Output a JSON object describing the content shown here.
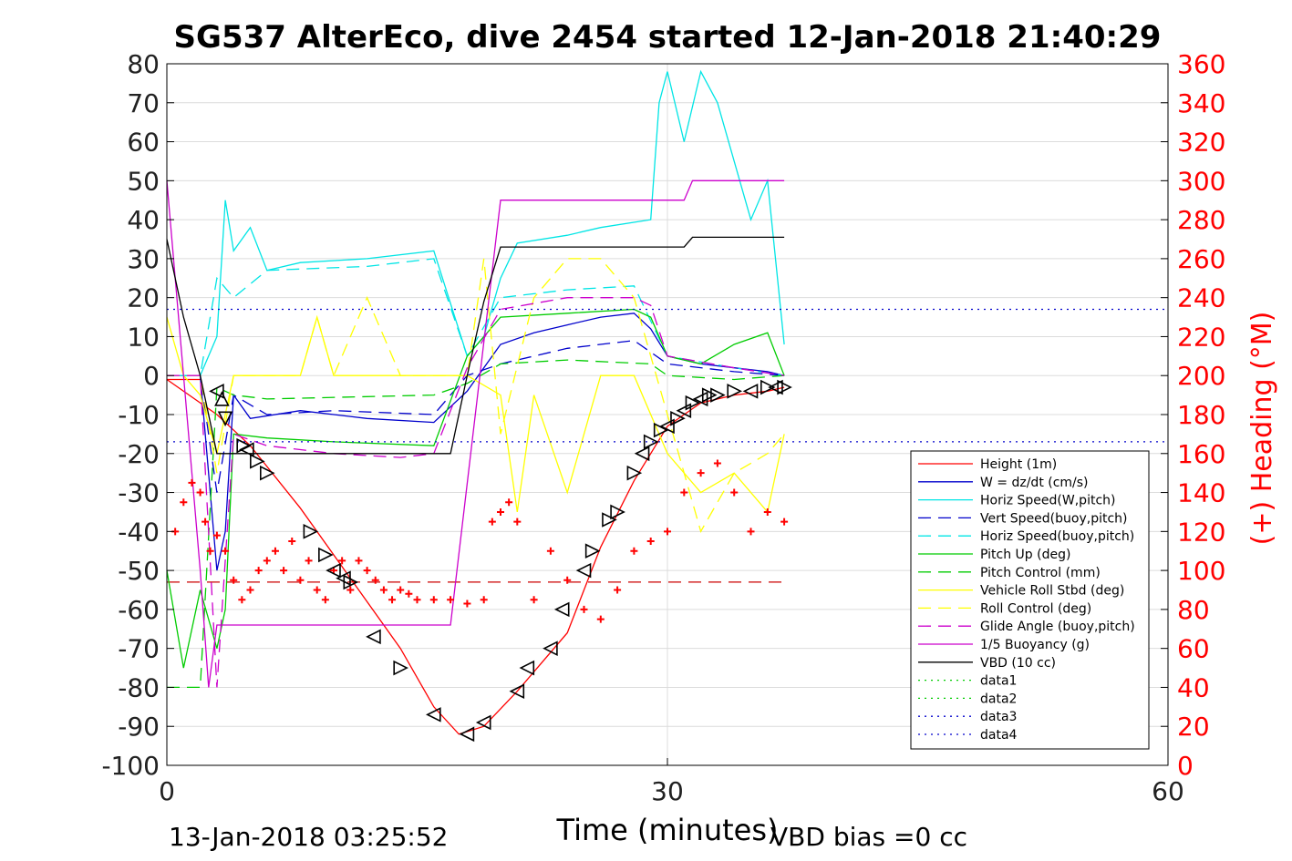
{
  "chart_data": {
    "type": "line",
    "title": "SG537 AlterEco, dive 2454 started 12-Jan-2018 21:40:29",
    "xlabel": "Time (minutes)",
    "ylabel": "",
    "y2label": "(+) Heading (°M)",
    "footer_left": "13-Jan-2018 03:25:52",
    "footer_right": "VBD bias =0 cc",
    "xlim": [
      0,
      60
    ],
    "ylim": [
      -100,
      80
    ],
    "y2lim": [
      0,
      360
    ],
    "xticks": [
      0,
      30,
      60
    ],
    "yticks": [
      -100,
      -90,
      -80,
      -70,
      -60,
      -50,
      -40,
      -30,
      -20,
      -10,
      0,
      10,
      20,
      30,
      40,
      50,
      60,
      70,
      80
    ],
    "y2ticks": [
      0,
      20,
      40,
      60,
      80,
      100,
      120,
      140,
      160,
      180,
      200,
      220,
      240,
      260,
      280,
      300,
      320,
      340,
      360
    ],
    "grid": true,
    "legend_position": "bottom-right",
    "colors": {
      "axis_right": "#ff0000",
      "red": "#ff0000",
      "blue": "#0000cc",
      "cyan": "#00e5e5",
      "green": "#00cc00",
      "yellow": "#ffff00",
      "magenta": "#cc00cc",
      "black": "#000000"
    },
    "series": [
      {
        "name": "Height (1m)",
        "color": "#ff0000",
        "style": "solid",
        "x": [
          0,
          3,
          5,
          8,
          11,
          14,
          16,
          17.5,
          19,
          21,
          24,
          26,
          28,
          30,
          32,
          34,
          36,
          37
        ],
        "y": [
          -1,
          -10,
          -18,
          -34,
          -52,
          -70,
          -85,
          -92,
          -90,
          -81,
          -66,
          -44,
          -27,
          -13,
          -7,
          -5,
          -4,
          -3
        ]
      },
      {
        "name": "W = dz/dt (cm/s)",
        "color": "#0000cc",
        "style": "solid",
        "x": [
          0,
          2,
          3,
          3.5,
          4,
          5,
          8,
          12,
          16,
          18,
          20,
          22,
          24,
          26,
          28,
          29,
          30,
          32,
          34,
          36,
          37
        ],
        "y": [
          0,
          0,
          -50,
          -40,
          -5,
          -11,
          -9,
          -11,
          -12,
          -4,
          8,
          11,
          13,
          15,
          16,
          12,
          5,
          3,
          2,
          1,
          0
        ]
      },
      {
        "name": "Horiz Speed(W,pitch)",
        "color": "#00e5e5",
        "style": "solid",
        "x": [
          0,
          2,
          3,
          3.5,
          4,
          5,
          6,
          8,
          12,
          16,
          18,
          19,
          20,
          21,
          24,
          26,
          29,
          29.5,
          30,
          31,
          32,
          33,
          34,
          35,
          36,
          37
        ],
        "y": [
          0,
          0,
          10,
          45,
          32,
          38,
          27,
          29,
          30,
          32,
          5,
          10,
          25,
          34,
          36,
          38,
          40,
          70,
          78,
          60,
          78,
          70,
          55,
          40,
          50,
          8
        ]
      },
      {
        "name": "Vert Speed(buoy,pitch)",
        "color": "#0000cc",
        "style": "dashed",
        "x": [
          0,
          2,
          3,
          4,
          6,
          10,
          16,
          18,
          20,
          24,
          28,
          30,
          34,
          37
        ],
        "y": [
          0,
          0,
          -30,
          -5,
          -10,
          -9,
          -10,
          0,
          3,
          7,
          9,
          3,
          1,
          0
        ]
      },
      {
        "name": "Horiz Speed(buoy,pitch)",
        "color": "#00e5e5",
        "style": "dashed",
        "x": [
          0,
          2,
          3,
          4,
          6,
          12,
          16,
          18,
          20,
          24,
          28,
          30,
          34,
          37
        ],
        "y": [
          0,
          0,
          25,
          20,
          27,
          28,
          30,
          5,
          20,
          22,
          23,
          5,
          2,
          0
        ]
      },
      {
        "name": "Pitch Up (deg)",
        "color": "#00cc00",
        "style": "solid",
        "x": [
          0,
          1,
          2,
          3,
          3.5,
          4,
          6,
          10,
          16,
          18,
          19,
          20,
          24,
          28,
          29,
          30,
          32,
          34,
          36,
          37
        ],
        "y": [
          -50,
          -75,
          -55,
          -70,
          -60,
          -15,
          -16,
          -17,
          -18,
          5,
          10,
          15,
          16,
          17,
          15,
          5,
          3,
          8,
          11,
          0
        ]
      },
      {
        "name": "Pitch Control (mm)",
        "color": "#00cc00",
        "style": "dashed",
        "x": [
          0,
          1,
          2,
          3,
          4,
          6,
          16,
          18,
          20,
          24,
          29,
          30,
          34,
          37
        ],
        "y": [
          -80,
          -80,
          -80,
          -3,
          -5,
          -6,
          -5,
          -2,
          3,
          4,
          3,
          0,
          -1,
          0
        ]
      },
      {
        "name": "Vehicle Roll Stbd (deg)",
        "color": "#ffff00",
        "style": "solid",
        "x": [
          0,
          1,
          2,
          3,
          4,
          6,
          8,
          9,
          10,
          14,
          16,
          18,
          20,
          21,
          22,
          24,
          26,
          28,
          30,
          32,
          34,
          36,
          37
        ],
        "y": [
          15,
          0,
          -5,
          -20,
          0,
          0,
          0,
          15,
          0,
          0,
          0,
          0,
          -5,
          -35,
          -5,
          -30,
          0,
          0,
          -20,
          -30,
          -25,
          -35,
          -15
        ]
      },
      {
        "name": "Roll Control (deg)",
        "color": "#ffff00",
        "style": "dashed",
        "x": [
          0,
          2,
          3,
          4,
          6,
          8,
          9,
          10,
          12,
          14,
          16,
          18,
          19,
          20,
          22,
          24,
          26,
          28,
          30,
          32,
          34,
          36,
          37
        ],
        "y": [
          0,
          0,
          -25,
          0,
          0,
          0,
          15,
          0,
          20,
          0,
          0,
          0,
          30,
          -15,
          20,
          30,
          30,
          20,
          -10,
          -40,
          -25,
          -20,
          -15
        ]
      },
      {
        "name": "Glide Angle (buoy,pitch)",
        "color": "#cc00cc",
        "style": "dashed",
        "x": [
          0,
          2,
          3,
          4,
          6,
          10,
          14,
          16,
          18,
          20,
          24,
          28,
          29,
          30,
          34,
          37
        ],
        "y": [
          0,
          0,
          -80,
          -15,
          -18,
          -20,
          -21,
          -20,
          2,
          17,
          20,
          20,
          18,
          5,
          2,
          0
        ]
      },
      {
        "name": "1/5 Buoyancy (g)",
        "color": "#cc00cc",
        "style": "solid",
        "x": [
          0,
          1,
          2,
          2.5,
          3,
          16,
          17,
          20,
          21,
          31,
          31.5,
          37
        ],
        "y": [
          50,
          0,
          -50,
          -80,
          -64,
          -64,
          -64,
          45,
          45,
          45,
          50,
          50
        ]
      },
      {
        "name": "VBD (10 cc)",
        "color": "#000000",
        "style": "solid",
        "x": [
          0,
          1,
          2,
          3,
          16,
          17,
          18,
          19,
          20,
          31,
          31.5,
          37
        ],
        "y": [
          35,
          15,
          0,
          -20,
          -20,
          -20,
          0,
          19,
          33,
          33,
          35.5,
          35.5
        ]
      },
      {
        "name": "data1",
        "color": "#00cc00",
        "style": "dotted",
        "x": [],
        "y": []
      },
      {
        "name": "data2",
        "color": "#00cc00",
        "style": "dotted",
        "x": [],
        "y": []
      },
      {
        "name": "data3",
        "color": "#0000cc",
        "style": "dotted",
        "x": [
          0,
          60
        ],
        "y": [
          -17,
          -17
        ]
      },
      {
        "name": "data4",
        "color": "#0000cc",
        "style": "dotted",
        "x": [
          0,
          60
        ],
        "y": [
          17,
          17
        ]
      }
    ],
    "reference_lines": [
      {
        "color": "#cc0000",
        "style": "dashed",
        "x": [
          0,
          37
        ],
        "y": [
          -53,
          -53
        ]
      },
      {
        "color": "#ff0000",
        "style": "solid",
        "x": [
          0,
          2
        ],
        "y": [
          -1,
          -1
        ]
      }
    ],
    "heading_points": {
      "color": "#ff0000",
      "marker": "+",
      "x": [
        0.5,
        1,
        1.5,
        2,
        2.3,
        2.6,
        3,
        3.5,
        4,
        4.5,
        5,
        5.5,
        6,
        6.5,
        7,
        7.5,
        8,
        8.5,
        9,
        9.5,
        10,
        10.5,
        11,
        11.5,
        12,
        12.5,
        13,
        13.5,
        14,
        14.5,
        15,
        16,
        17,
        18,
        19,
        19.5,
        20,
        20.5,
        21,
        22,
        23,
        24,
        25,
        26,
        27,
        28,
        29,
        30,
        31,
        32,
        33,
        34,
        35,
        36,
        37
      ],
      "y": [
        120,
        135,
        145,
        140,
        125,
        110,
        118,
        110,
        95,
        85,
        90,
        100,
        105,
        110,
        100,
        115,
        95,
        105,
        90,
        85,
        100,
        105,
        90,
        105,
        100,
        95,
        90,
        85,
        90,
        88,
        85,
        85,
        85,
        83,
        85,
        125,
        130,
        135,
        125,
        85,
        110,
        95,
        80,
        75,
        90,
        110,
        115,
        120,
        140,
        150,
        155,
        140,
        120,
        130,
        125
      ]
    },
    "glider_markers": {
      "x": [
        3,
        3.3,
        3.5,
        4.6,
        4.8,
        5.4,
        6,
        8.6,
        9.5,
        10,
        10.6,
        11,
        12.4,
        14,
        16,
        18,
        19,
        21,
        21.6,
        23,
        23.7,
        25,
        25.5,
        26.5,
        27,
        28,
        28.5,
        29,
        29.6,
        30,
        30.6,
        31,
        31.5,
        32,
        32.5,
        33,
        34,
        35,
        36,
        36.5,
        37
      ],
      "y": [
        -4,
        -6,
        -11,
        -18,
        -19,
        -22,
        -25,
        -40,
        -46,
        -50,
        -52,
        -53,
        -67,
        -75,
        -87,
        -92,
        -89,
        -81,
        -75,
        -70,
        -60,
        -50,
        -45,
        -37,
        -35,
        -25,
        -20,
        -17,
        -14,
        -13,
        -11,
        -9,
        -7,
        -6,
        -5,
        -5,
        -4,
        -4,
        -3,
        -3,
        -3
      ],
      "dir": [
        "left",
        "up",
        "down",
        "right",
        "left",
        "right",
        "right",
        "right",
        "right",
        "left",
        "left",
        "right",
        "left",
        "right",
        "left",
        "left",
        "left",
        "left",
        "left",
        "left",
        "left",
        "left",
        "right",
        "right",
        "right",
        "right",
        "left",
        "right",
        "right",
        "left",
        "right",
        "left",
        "right",
        "left",
        "right",
        "right",
        "right",
        "left",
        "right",
        "left",
        "right"
      ]
    }
  }
}
